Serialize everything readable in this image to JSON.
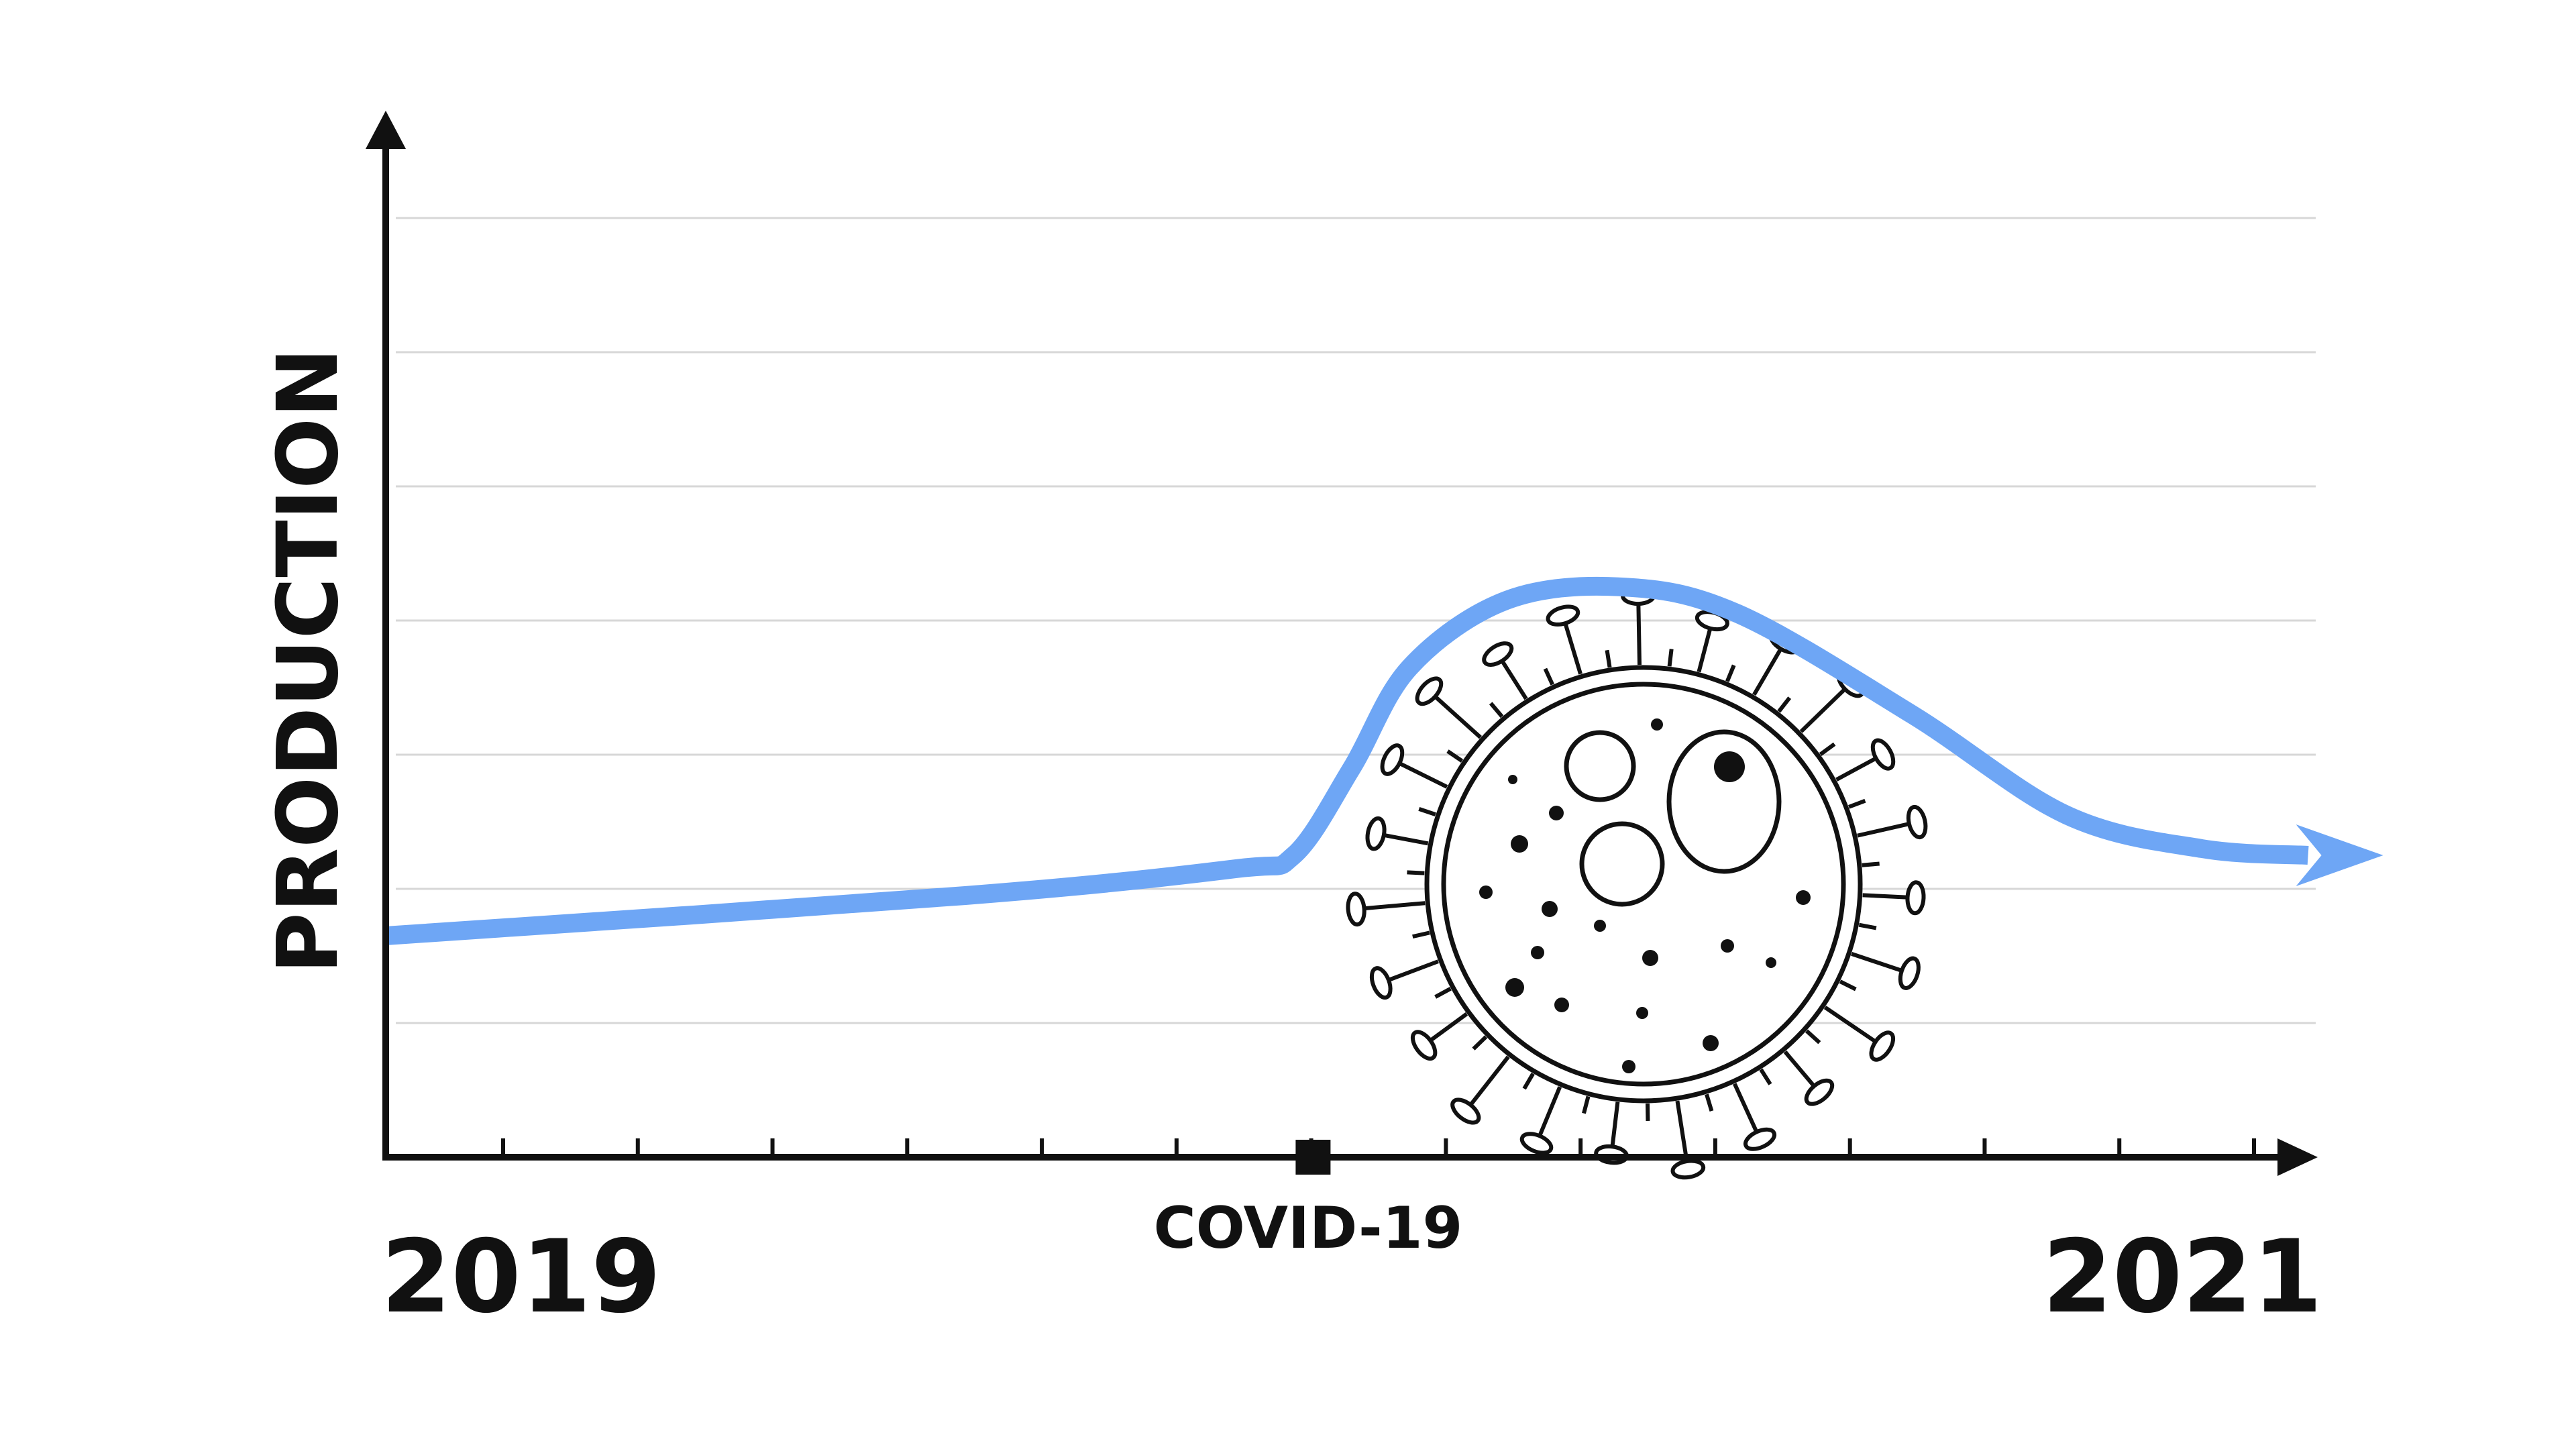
{
  "chart_data": {
    "type": "line",
    "title": "",
    "ylabel": "PRODUCTION",
    "xlabel": "",
    "x_start_label": "2019",
    "x_end_label": "2021",
    "event_marker": {
      "label": "COVID-19",
      "x": 0.48
    },
    "x_tick_count": 14,
    "y_gridlines": 7,
    "grid": true,
    "ylim": [
      0,
      7
    ],
    "series": [
      {
        "color": "#6ea6f5",
        "points": [
          [
            0.0,
            1.65
          ],
          [
            0.3,
            1.95
          ],
          [
            0.44,
            2.15
          ],
          [
            0.47,
            2.25
          ],
          [
            0.5,
            2.9
          ],
          [
            0.53,
            3.65
          ],
          [
            0.58,
            4.15
          ],
          [
            0.64,
            4.25
          ],
          [
            0.7,
            4.05
          ],
          [
            0.79,
            3.3
          ],
          [
            0.87,
            2.55
          ],
          [
            0.94,
            2.3
          ],
          [
            0.995,
            2.25
          ]
        ]
      }
    ],
    "end_arrow": true
  },
  "illustration": {
    "icon": "coronavirus-icon",
    "stroke": "#111111"
  }
}
